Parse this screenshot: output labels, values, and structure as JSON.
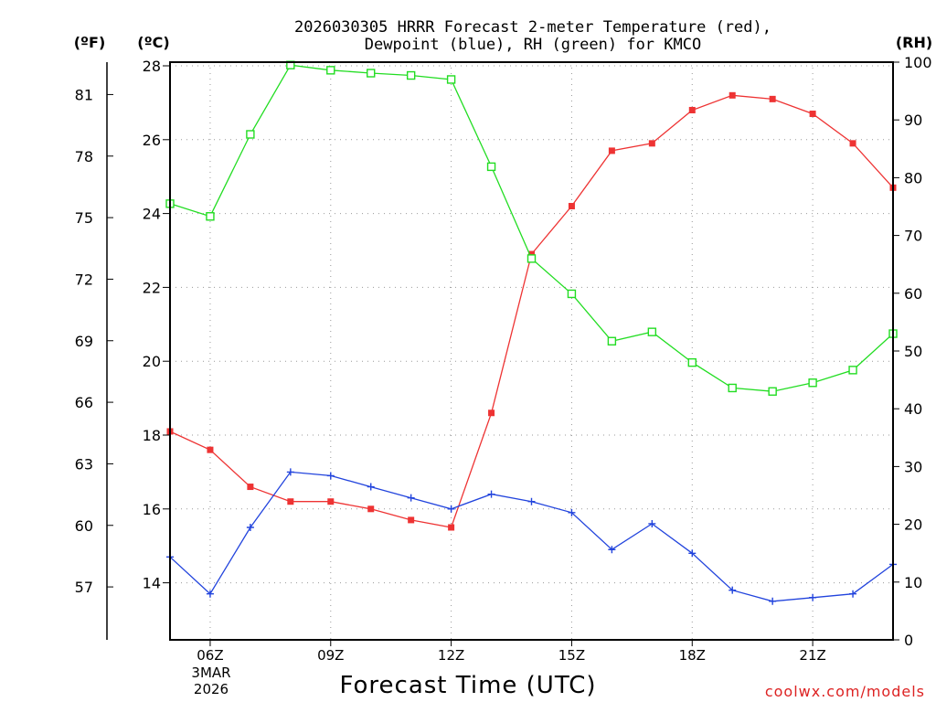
{
  "chart_data": {
    "type": "line",
    "title_line1": "2026030305 HRRR Forecast 2-meter Temperature (red),",
    "title_line2": "Dewpoint (blue), RH (green) for KMCO",
    "unit_f": "(ºF)",
    "unit_c": "(ºC)",
    "unit_rh": "(RH)",
    "xlabel": "Forecast Time (UTC)",
    "credit": "coolwx.com/models",
    "x_hours": [
      5,
      6,
      7,
      8,
      9,
      10,
      11,
      12,
      13,
      14,
      15,
      16,
      17,
      18,
      19,
      20,
      21,
      22,
      23
    ],
    "x_range": [
      5,
      23
    ],
    "x_ticks": [
      {
        "hour": 6,
        "label": "06Z"
      },
      {
        "hour": 9,
        "label": "09Z"
      },
      {
        "hour": 12,
        "label": "12Z"
      },
      {
        "hour": 15,
        "label": "15Z"
      },
      {
        "hour": 18,
        "label": "18Z"
      },
      {
        "hour": 21,
        "label": "21Z"
      }
    ],
    "date_label": {
      "line1": "3MAR",
      "line2": "2026"
    },
    "ylim_c": [
      12.5,
      28.1
    ],
    "yticks_c": [
      14,
      16,
      18,
      20,
      22,
      24,
      26,
      28
    ],
    "yticks_f": [
      57,
      60,
      63,
      66,
      69,
      72,
      75,
      78,
      81
    ],
    "ylim_rh": [
      0,
      100
    ],
    "yticks_rh": [
      0,
      10,
      20,
      30,
      40,
      50,
      60,
      70,
      80,
      90,
      100
    ],
    "grid": true,
    "series": [
      {
        "name": "Temperature",
        "axis": "c",
        "color": "#ee3333",
        "marker": "filled-square",
        "values": [
          18.1,
          17.6,
          16.6,
          16.2,
          16.2,
          16.0,
          15.7,
          15.5,
          18.6,
          22.9,
          24.2,
          25.7,
          25.9,
          26.8,
          27.2,
          27.1,
          26.7,
          25.9,
          24.7
        ]
      },
      {
        "name": "Dewpoint",
        "axis": "c",
        "color": "#2244dd",
        "marker": "plus",
        "values": [
          14.7,
          13.7,
          15.5,
          17.0,
          16.9,
          16.6,
          16.3,
          16.0,
          16.4,
          16.2,
          15.9,
          14.9,
          15.6,
          14.8,
          13.8,
          13.5,
          13.6,
          13.7,
          14.5
        ]
      },
      {
        "name": "RH",
        "axis": "rh",
        "color": "#22dd22",
        "marker": "open-square",
        "values": [
          75.5,
          73.3,
          87.5,
          99.5,
          98.6,
          98.1,
          97.7,
          97.0,
          81.9,
          66.0,
          59.9,
          51.7,
          53.3,
          48.0,
          43.6,
          43.0,
          44.5,
          46.7,
          53.0
        ]
      }
    ],
    "colors": {
      "axes": "#000000",
      "grid": "#999999"
    }
  }
}
